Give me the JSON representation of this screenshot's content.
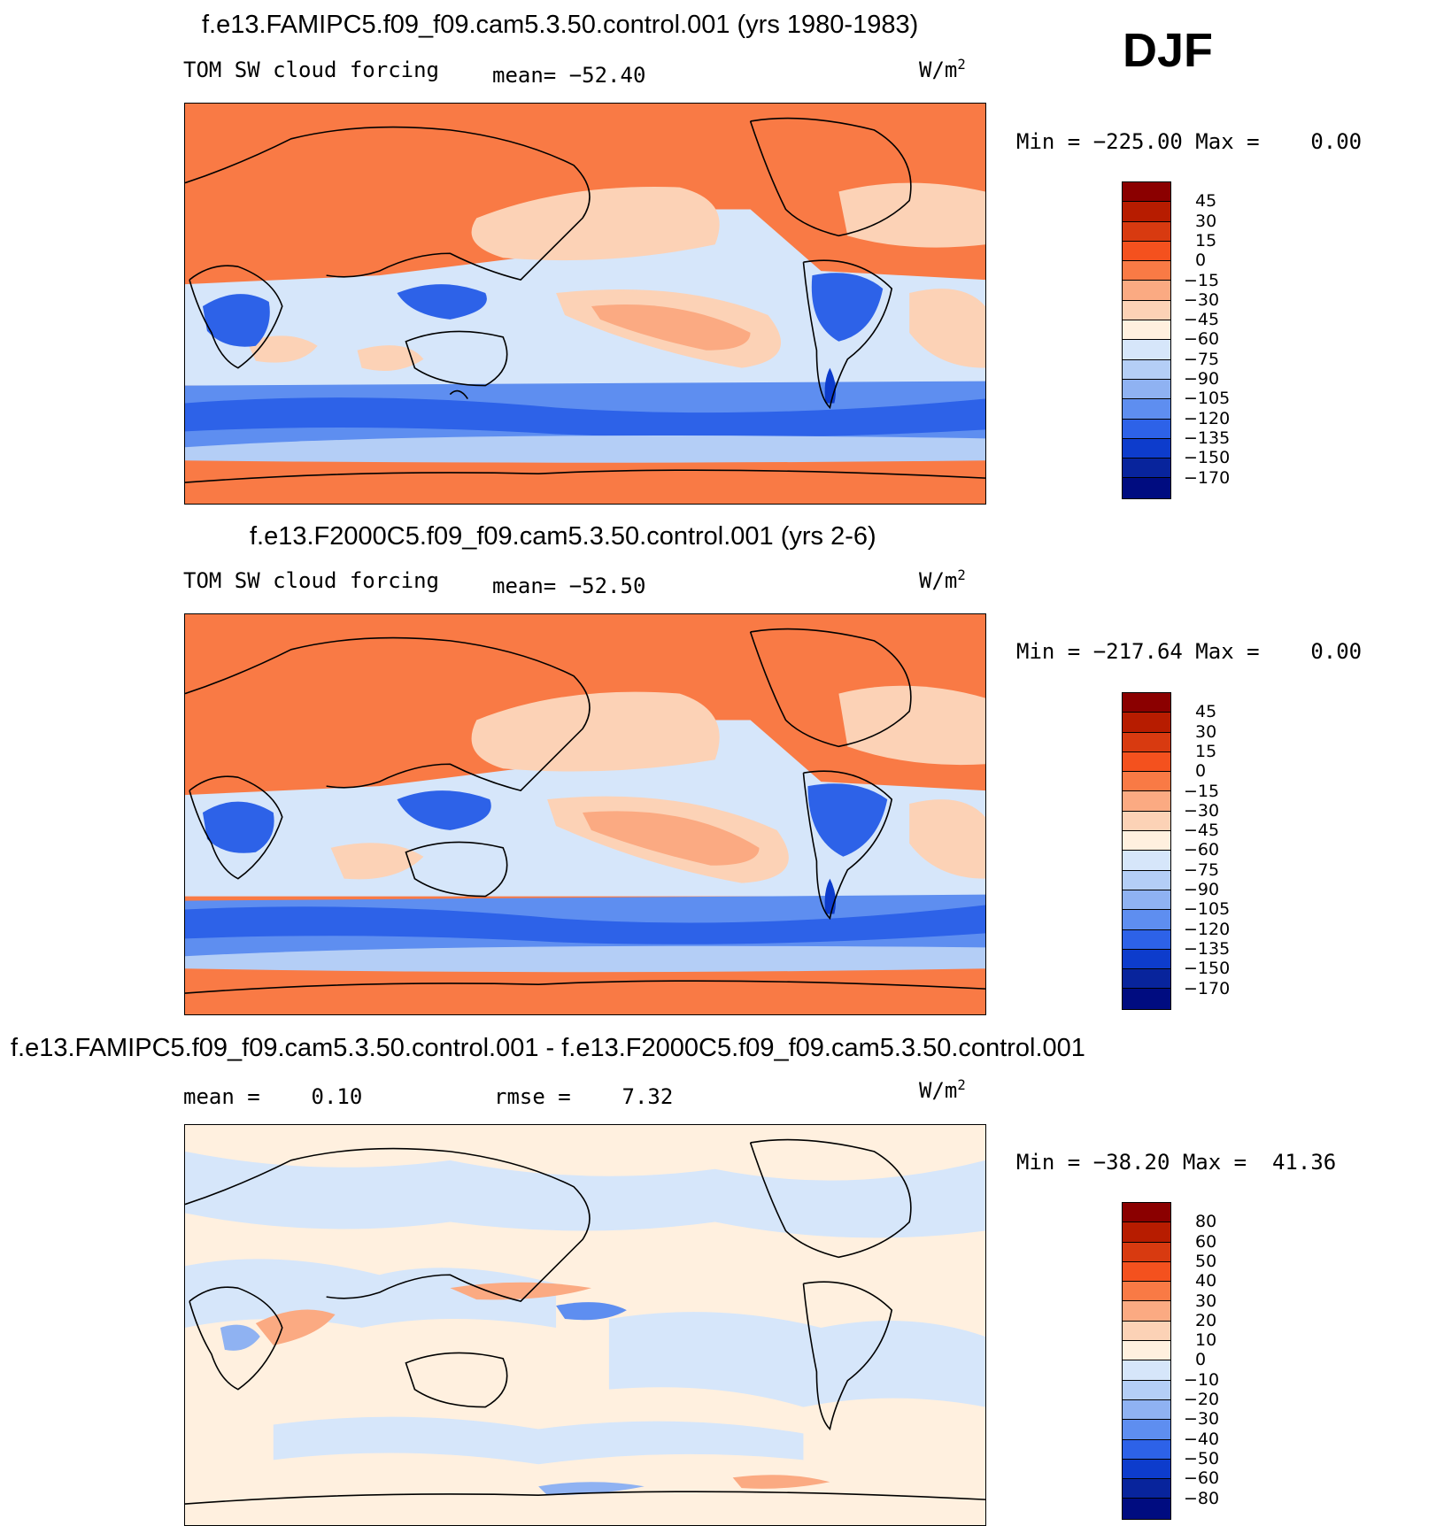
{
  "season": "DJF",
  "units_label": "W/m",
  "units_sup": "2",
  "panels": [
    {
      "title": "f.e13.FAMIPC5.f09_f09.cam5.3.50.control.001 (yrs 1980-1983)",
      "variable": "TOM SW cloud forcing",
      "stat_text": "mean= −52.40",
      "range_text": "Min = −225.00 Max =    0.00"
    },
    {
      "title": "f.e13.F2000C5.f09_f09.cam5.3.50.control.001 (yrs 2-6)",
      "variable": "TOM SW cloud forcing",
      "stat_text": "mean= −52.50",
      "range_text": "Min = −217.64 Max =    0.00"
    },
    {
      "title": "f.e13.FAMIPC5.f09_f09.cam5.3.50.control.001 - f.e13.F2000C5.f09_f09.cam5.3.50.control.001",
      "mean_text": "mean =    0.10",
      "rmse_text": "rmse =    7.32",
      "range_text": "Min = −38.20 Max =  41.36"
    }
  ],
  "chart_data": [
    {
      "type": "heatmap",
      "title": "f.e13.FAMIPC5.f09_f09.cam5.3.50.control.001 (yrs 1980-1983)",
      "variable": "TOM SW cloud forcing",
      "units": "W/m2",
      "mean": -52.4,
      "min": -225.0,
      "max": 0.0,
      "levels": [
        45,
        30,
        15,
        0,
        -15,
        -30,
        -45,
        -60,
        -75,
        -90,
        -105,
        -120,
        -135,
        -150,
        -170
      ],
      "level_labels": [
        "45",
        "30",
        "15",
        "0",
        "−15",
        "−30",
        "−45",
        "−60",
        "−75",
        "−90",
        "−105",
        "−120",
        "−135",
        "−150",
        "−170"
      ],
      "colors": [
        "#8b0000",
        "#b71c00",
        "#d83a10",
        "#f4511e",
        "#f97a45",
        "#fbaa82",
        "#fcd2b6",
        "#fff0df",
        "#d6e6fa",
        "#b4cef6",
        "#8fb2f2",
        "#5e8ef0",
        "#2d62e8",
        "#0d3ccc",
        "#08249c",
        "#000c80"
      ]
    },
    {
      "type": "heatmap",
      "title": "f.e13.F2000C5.f09_f09.cam5.3.50.control.001 (yrs 2-6)",
      "variable": "TOM SW cloud forcing",
      "units": "W/m2",
      "mean": -52.5,
      "min": -217.64,
      "max": 0.0,
      "levels": [
        45,
        30,
        15,
        0,
        -15,
        -30,
        -45,
        -60,
        -75,
        -90,
        -105,
        -120,
        -135,
        -150,
        -170
      ],
      "level_labels": [
        "45",
        "30",
        "15",
        "0",
        "−15",
        "−30",
        "−45",
        "−60",
        "−75",
        "−90",
        "−105",
        "−120",
        "−135",
        "−150",
        "−170"
      ],
      "colors": [
        "#8b0000",
        "#b71c00",
        "#d83a10",
        "#f4511e",
        "#f97a45",
        "#fbaa82",
        "#fcd2b6",
        "#fff0df",
        "#d6e6fa",
        "#b4cef6",
        "#8fb2f2",
        "#5e8ef0",
        "#2d62e8",
        "#0d3ccc",
        "#08249c",
        "#000c80"
      ]
    },
    {
      "type": "heatmap",
      "title": "f.e13.FAMIPC5.f09_f09.cam5.3.50.control.001 - f.e13.F2000C5.f09_f09.cam5.3.50.control.001",
      "units": "W/m2",
      "mean": 0.1,
      "rmse": 7.32,
      "min": -38.2,
      "max": 41.36,
      "levels": [
        80,
        60,
        50,
        40,
        30,
        20,
        10,
        0,
        -10,
        -20,
        -30,
        -40,
        -50,
        -60,
        -80
      ],
      "level_labels": [
        "80",
        "60",
        "50",
        "40",
        "30",
        "20",
        "10",
        "0",
        "−10",
        "−20",
        "−30",
        "−40",
        "−50",
        "−60",
        "−80"
      ],
      "colors": [
        "#8b0000",
        "#b71c00",
        "#d83a10",
        "#f4511e",
        "#f97a45",
        "#fbaa82",
        "#fcd2b6",
        "#fff0df",
        "#d6e6fa",
        "#b4cef6",
        "#8fb2f2",
        "#5e8ef0",
        "#2d62e8",
        "#0d3ccc",
        "#08249c",
        "#000c80"
      ]
    }
  ]
}
